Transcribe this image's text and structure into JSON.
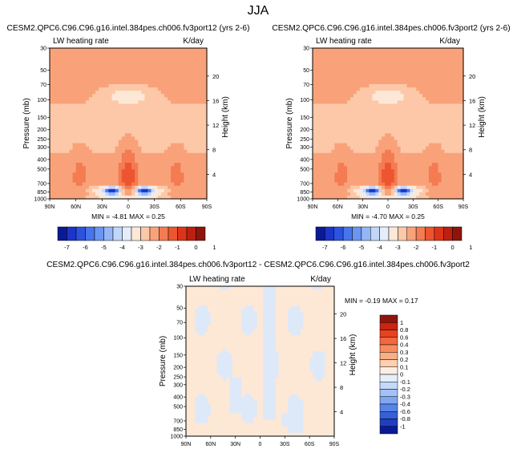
{
  "figure_title": "JJA",
  "chart_data": [
    {
      "type": "heatmap",
      "title": "CESM2.QPC6.C96.C96.g16.intel.384pes.ch006.fv3port12 (yrs 2-6)",
      "left_label": "LW heating rate",
      "right_label": "K/day",
      "ylabel": "Pressure (mb)",
      "ylabel_right": "Height (km)",
      "x_ticks": [
        "90N",
        "60N",
        "30N",
        "0",
        "30S",
        "60S",
        "90S"
      ],
      "y_ticks": [
        30,
        50,
        70,
        100,
        150,
        200,
        250,
        300,
        400,
        500,
        700,
        850,
        1000
      ],
      "ylim": [
        30,
        1000
      ],
      "height_ticks": [
        20,
        16,
        12,
        8,
        4
      ],
      "min_label": "MIN =",
      "min": "-4.81",
      "max_label": "MAX =",
      "max": "0.25",
      "colorbar": {
        "orientation": "horizontal",
        "tick_labels": [
          "-7",
          "-6",
          "-5",
          "-4",
          "-3",
          "-2",
          "-1",
          "0",
          "1"
        ],
        "colors": [
          "#0a1a96",
          "#1c34c8",
          "#2c52de",
          "#4675ec",
          "#6a95f2",
          "#95b6f6",
          "#c0d6fb",
          "#e4eefb",
          "#fde8d7",
          "#fcc8a8",
          "#f9a27a",
          "#f47b52",
          "#ed5530",
          "#dd3418",
          "#bb2010",
          "#8f150c"
        ]
      }
    },
    {
      "type": "heatmap",
      "title": "CESM2.QPC6.C96.C96.g16.intel.384pes.ch006.fv3port2 (yrs 2-6)",
      "left_label": "LW heating rate",
      "right_label": "K/day",
      "ylabel": "Pressure (mb)",
      "ylabel_right": "Height (km)",
      "x_ticks": [
        "90N",
        "60N",
        "30N",
        "0",
        "30S",
        "60S",
        "90S"
      ],
      "y_ticks": [
        30,
        50,
        70,
        100,
        150,
        200,
        250,
        300,
        400,
        500,
        700,
        850,
        1000
      ],
      "ylim": [
        30,
        1000
      ],
      "height_ticks": [
        20,
        16,
        12,
        8,
        4
      ],
      "min_label": "MIN =",
      "min": "-4.70",
      "max_label": "MAX =",
      "max": "0.25",
      "colorbar": {
        "orientation": "horizontal",
        "tick_labels": [
          "-7",
          "-6",
          "-5",
          "-4",
          "-3",
          "-2",
          "-1",
          "0",
          "1"
        ],
        "colors": [
          "#0a1a96",
          "#1c34c8",
          "#2c52de",
          "#4675ec",
          "#6a95f2",
          "#95b6f6",
          "#c0d6fb",
          "#e4eefb",
          "#fde8d7",
          "#fcc8a8",
          "#f9a27a",
          "#f47b52",
          "#ed5530",
          "#dd3418",
          "#bb2010",
          "#8f150c"
        ]
      }
    },
    {
      "type": "heatmap",
      "title": "CESM2.QPC6.C96.C96.g16.intel.384pes.ch006.fv3port12 - CESM2.QPC6.C96.C96.g16.intel.384pes.ch006.fv3port2",
      "left_label": "LW heating rate",
      "right_label": "K/day",
      "ylabel": "Pressure (mb)",
      "ylabel_right": "Height (km)",
      "x_ticks": [
        "90N",
        "60N",
        "30N",
        "0",
        "30S",
        "60S",
        "90S"
      ],
      "y_ticks": [
        30,
        50,
        70,
        100,
        150,
        200,
        250,
        300,
        400,
        500,
        700,
        850,
        1000
      ],
      "ylim": [
        30,
        1000
      ],
      "height_ticks": [
        20,
        16,
        12,
        8,
        4
      ],
      "min_label": "MIN =",
      "min": "-0.19",
      "max_label": "MAX =",
      "max": "0.17",
      "colorbar": {
        "orientation": "vertical",
        "tick_labels": [
          "1",
          "0.8",
          "0.6",
          "0.4",
          "0.3",
          "0.2",
          "0.1",
          "0",
          "-0.1",
          "-0.2",
          "-0.3",
          "-0.4",
          "-0.6",
          "-0.8",
          "-1"
        ],
        "colors": [
          "#8f150c",
          "#c82513",
          "#e8421f",
          "#f2683f",
          "#f78c5e",
          "#fbad84",
          "#fdd0b0",
          "#fdeee2",
          "#e5eefb",
          "#c5dafb",
          "#a3c2f7",
          "#7fa6f1",
          "#5684e8",
          "#3560d8",
          "#1f3ec0",
          "#0a1a96"
        ]
      }
    }
  ]
}
